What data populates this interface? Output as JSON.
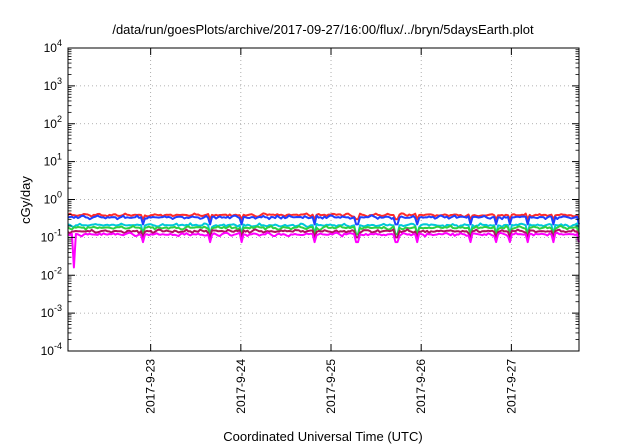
{
  "chart_data": {
    "type": "line",
    "title": "/data/run/goesPlots/archive/2017-09-27/16:00/flux/../bryn/5daysEarth.plot",
    "xlabel": "Coordinated Universal Time (UTC)",
    "ylabel": "cGy/day",
    "yscale": "log",
    "ylim": [
      0.0001,
      10000
    ],
    "y_ticks": [
      {
        "base": "10",
        "exp": "-4"
      },
      {
        "base": "10",
        "exp": "-3"
      },
      {
        "base": "10",
        "exp": "-2"
      },
      {
        "base": "10",
        "exp": "-1"
      },
      {
        "base": "10",
        "exp": "0"
      },
      {
        "base": "10",
        "exp": "1"
      },
      {
        "base": "10",
        "exp": "2"
      },
      {
        "base": "10",
        "exp": "3"
      },
      {
        "base": "10",
        "exp": "4"
      }
    ],
    "xlim": [
      "2017-09-22 02:00",
      "2017-09-27 18:00"
    ],
    "x_ticks": [
      "2017-9-23",
      "2017-9-24",
      "2017-9-25",
      "2017-9-26",
      "2017-9-27"
    ],
    "grid": true,
    "series": [
      {
        "color": "#ff2a2a",
        "level": 0.39,
        "spike_to": 0.3
      },
      {
        "color": "#1f3fff",
        "level": 0.34,
        "spike_to": 0.22
      },
      {
        "color": "#00c8d8",
        "level": 0.21,
        "spike_to": 0.12
      },
      {
        "color": "#30d040",
        "level": 0.18,
        "spike_to": 0.12
      },
      {
        "color": "#b01060",
        "level": 0.145,
        "spike_to": 0.1
      },
      {
        "color": "#ff00ff",
        "level": 0.12,
        "spike_to": 0.075,
        "min_spike": 0.016
      }
    ]
  }
}
